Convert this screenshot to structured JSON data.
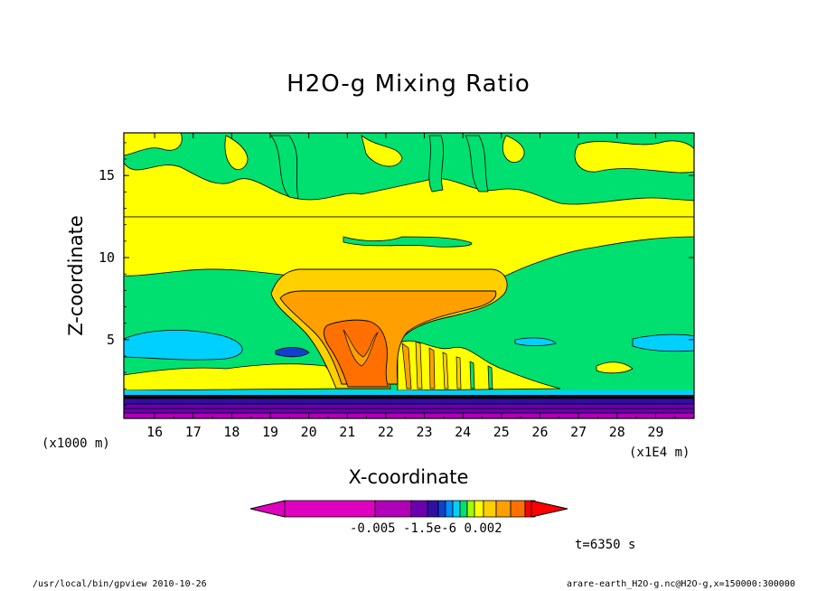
{
  "chart_data": {
    "type": "heatmap",
    "title": "H2O-g Mixing Ratio",
    "xlabel": "X-coordinate",
    "ylabel": "Z-coordinate",
    "x_unit": "(x1E4 m)",
    "y_unit": "(x1000 m)",
    "x_ticks": [
      16,
      17,
      18,
      19,
      20,
      21,
      22,
      23,
      24,
      25,
      26,
      27,
      28,
      29
    ],
    "y_ticks": [
      5,
      10,
      15
    ],
    "xlim": [
      15.2,
      30.0
    ],
    "ylim": [
      0.2,
      17.6
    ],
    "colorbar": {
      "labels": [
        "-0.005",
        "-1.5e-6",
        "0.002"
      ],
      "colors": [
        "#e000c0",
        "#b000b8",
        "#6a00b0",
        "#3010a0",
        "#1040d0",
        "#0090ff",
        "#00d0ff",
        "#00e070",
        "#a0ff00",
        "#ffff00",
        "#ffd000",
        "#ffa000",
        "#ff7000",
        "#ff0000"
      ]
    },
    "annotation": "t=6350 s"
  },
  "footer": {
    "left": "/usr/local/bin/gpview  2010-10-26",
    "right": "arare-earth_H2O-g.nc@H2O-g,x=150000:300000"
  }
}
